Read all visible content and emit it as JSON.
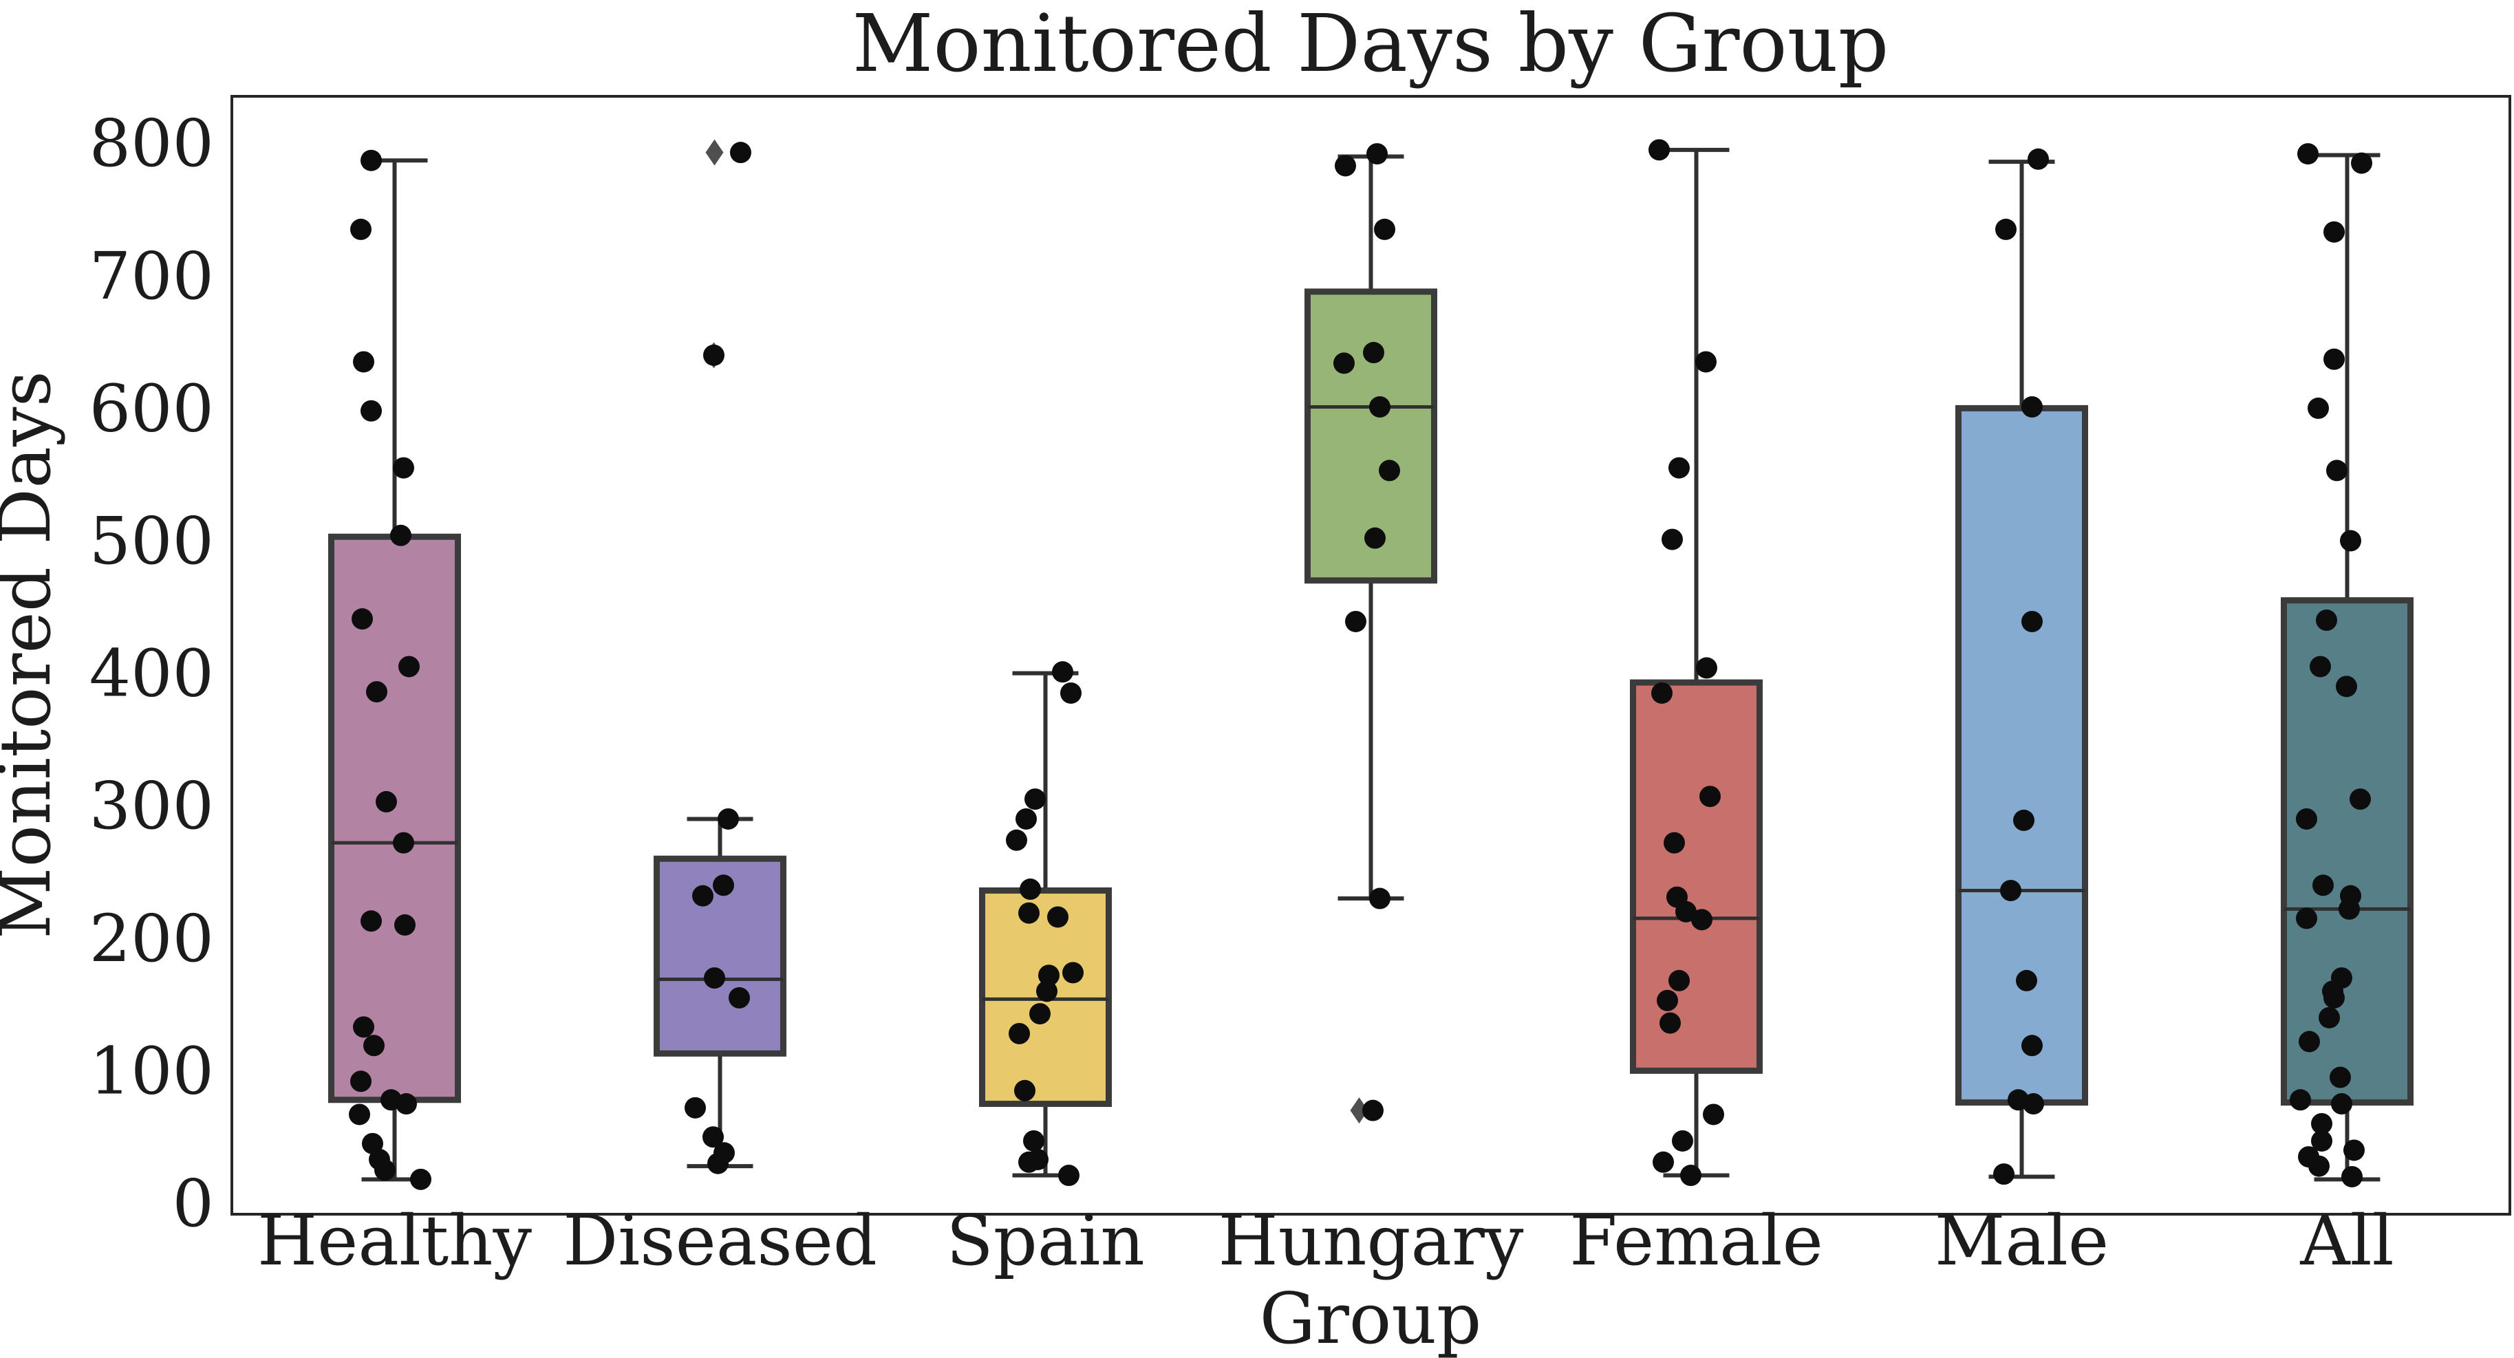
{
  "page": {
    "background": "#ffffff",
    "text_color": "#1c1c1c"
  },
  "chart_data": {
    "type": "box",
    "title": "Monitored Days by Group",
    "xlabel": "Group",
    "ylabel": "Monitored Days",
    "ylim": [
      -20,
      835
    ],
    "yticks": [
      0,
      100,
      200,
      300,
      400,
      500,
      600,
      700,
      800
    ],
    "ytick_labels": [
      "0",
      "100",
      "200",
      "300",
      "400",
      "500",
      "600",
      "700",
      "800"
    ],
    "grid": false,
    "legend": false,
    "categories": [
      "Healthy",
      "Diseased",
      "Spain",
      "Hungary",
      "Female",
      "Male",
      "All"
    ],
    "style": {
      "box_edge_color": "#3b3b3b",
      "whisker_color": "#303030",
      "median_color": "#303030",
      "frame_color": "#262626",
      "point_color": "#0d0d0d",
      "flier_color": "#4f4f4f"
    },
    "groups": [
      {
        "label": "Healthy",
        "color": "#b383a4",
        "box": {
          "whislo": 18,
          "q1": 78,
          "med": 272,
          "q3": 503,
          "whishi": 787
        },
        "fliers": [],
        "points": [
          [
            787,
            -34
          ],
          [
            735,
            -49
          ],
          [
            635,
            -45
          ],
          [
            598,
            -34
          ],
          [
            555,
            13
          ],
          [
            504,
            9
          ],
          [
            441,
            -47
          ],
          [
            405,
            21
          ],
          [
            386,
            -26
          ],
          [
            303,
            -12
          ],
          [
            272,
            13
          ],
          [
            213,
            -34
          ],
          [
            210,
            15
          ],
          [
            133,
            -45
          ],
          [
            119,
            -30
          ],
          [
            92,
            -49
          ],
          [
            78,
            -5
          ],
          [
            75,
            17
          ],
          [
            67,
            -51
          ],
          [
            45,
            -32
          ],
          [
            33,
            -22
          ],
          [
            25,
            -14
          ],
          [
            18,
            38
          ]
        ]
      },
      {
        "label": "Diseased",
        "color": "#9083bd",
        "box": {
          "whislo": 28,
          "q1": 113,
          "med": 169,
          "q3": 260,
          "whishi": 290
        },
        "fliers": [
          [
            793,
            -8
          ],
          [
            640,
            -9
          ]
        ],
        "points": [
          [
            793,
            30
          ],
          [
            640,
            -9
          ],
          [
            290,
            12
          ],
          [
            240,
            5
          ],
          [
            232,
            -25
          ],
          [
            170,
            -8
          ],
          [
            155,
            28
          ],
          [
            72,
            -36
          ],
          [
            50,
            -10
          ],
          [
            38,
            6
          ],
          [
            30,
            -3
          ]
        ]
      },
      {
        "label": "Spain",
        "color": "#e8ca6d",
        "box": {
          "whislo": 21,
          "q1": 75,
          "med": 154,
          "q3": 236,
          "whishi": 400
        },
        "fliers": [],
        "points": [
          [
            401,
            25
          ],
          [
            385,
            37
          ],
          [
            305,
            -15
          ],
          [
            290,
            -28
          ],
          [
            274,
            -42
          ],
          [
            237,
            -22
          ],
          [
            219,
            -24
          ],
          [
            216,
            18
          ],
          [
            174,
            40
          ],
          [
            172,
            5
          ],
          [
            160,
            2
          ],
          [
            143,
            -8
          ],
          [
            128,
            -38
          ],
          [
            85,
            -30
          ],
          [
            47,
            -17
          ],
          [
            33,
            -11
          ],
          [
            31,
            -24
          ],
          [
            21,
            34
          ]
        ]
      },
      {
        "label": "Hungary",
        "color": "#96b577",
        "box": {
          "whislo": 230,
          "q1": 470,
          "med": 601,
          "q3": 688,
          "whishi": 790
        },
        "fliers": [
          [
            70,
            -17
          ]
        ],
        "points": [
          [
            792,
            9
          ],
          [
            783,
            -37
          ],
          [
            735,
            20
          ],
          [
            642,
            4
          ],
          [
            634,
            -39
          ],
          [
            601,
            13
          ],
          [
            553,
            27
          ],
          [
            502,
            6
          ],
          [
            439,
            -22
          ],
          [
            230,
            13
          ],
          [
            70,
            3
          ]
        ]
      },
      {
        "label": "Female",
        "color": "#c8706c",
        "box": {
          "whislo": 21,
          "q1": 100,
          "med": 215,
          "q3": 393,
          "whishi": 795
        },
        "fliers": [],
        "points": [
          [
            795,
            -54
          ],
          [
            635,
            14
          ],
          [
            555,
            -25
          ],
          [
            501,
            -35
          ],
          [
            404,
            15
          ],
          [
            385,
            -50
          ],
          [
            307,
            20
          ],
          [
            272,
            -32
          ],
          [
            231,
            -28
          ],
          [
            220,
            -15
          ],
          [
            214,
            8
          ],
          [
            168,
            -25
          ],
          [
            153,
            -42
          ],
          [
            136,
            -38
          ],
          [
            67,
            25
          ],
          [
            47,
            -20
          ],
          [
            31,
            -48
          ],
          [
            21,
            -8
          ]
        ]
      },
      {
        "label": "Male",
        "color": "#85abd1",
        "box": {
          "whislo": 20,
          "q1": 76,
          "med": 236,
          "q3": 600,
          "whishi": 786
        },
        "fliers": [],
        "points": [
          [
            788,
            24
          ],
          [
            735,
            -23
          ],
          [
            601,
            15
          ],
          [
            439,
            15
          ],
          [
            289,
            3
          ],
          [
            236,
            -16
          ],
          [
            168,
            7
          ],
          [
            119,
            15
          ],
          [
            78,
            -5
          ],
          [
            75,
            17
          ],
          [
            22,
            -26
          ]
        ]
      },
      {
        "label": "All",
        "color": "#577f88",
        "box": {
          "whislo": 18,
          "q1": 76,
          "med": 222,
          "q3": 455,
          "whishi": 791
        },
        "fliers": [],
        "points": [
          [
            792,
            -57
          ],
          [
            785,
            21
          ],
          [
            733,
            -19
          ],
          [
            637,
            -19
          ],
          [
            600,
            -42
          ],
          [
            553,
            -15
          ],
          [
            500,
            5
          ],
          [
            440,
            -30
          ],
          [
            405,
            -39
          ],
          [
            390,
            -1
          ],
          [
            305,
            19
          ],
          [
            290,
            -59
          ],
          [
            240,
            -35
          ],
          [
            232,
            5
          ],
          [
            222,
            3
          ],
          [
            215,
            -59
          ],
          [
            170,
            -8
          ],
          [
            160,
            -21
          ],
          [
            155,
            -19
          ],
          [
            140,
            -26
          ],
          [
            122,
            -55
          ],
          [
            95,
            -10
          ],
          [
            78,
            -68
          ],
          [
            75,
            -8
          ],
          [
            60,
            -37
          ],
          [
            47,
            -37
          ],
          [
            40,
            10
          ],
          [
            35,
            -56
          ],
          [
            28,
            -41
          ],
          [
            20,
            7
          ]
        ]
      }
    ]
  }
}
